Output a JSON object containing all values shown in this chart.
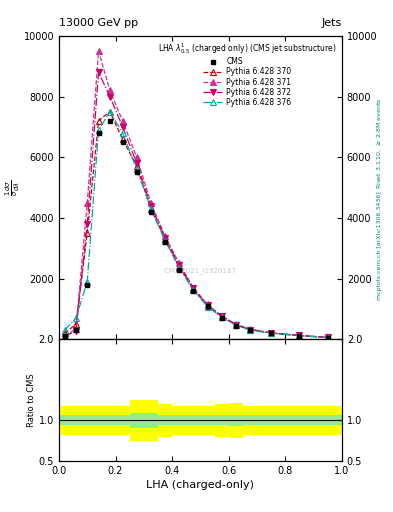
{
  "title_top": "13000 GeV pp",
  "title_right": "Jets",
  "legend_title": "LHA $\\lambda^{1}_{0.5}$ (charged only) (CMS jet substructure)",
  "ylabel_main": "$\\frac{1}{\\sigma}\\frac{d\\sigma}{d\\lambda}$",
  "ylabel_ratio": "Ratio to CMS",
  "xlabel": "LHA (charged-only)",
  "right_label_1": "Rivet 3.1.10, $\\geq$ 2.8M events",
  "right_label_2": "mcplots.cern.ch [arXiv:1306.3436]",
  "xlim": [
    0,
    1
  ],
  "ylim_main": [
    0,
    10000
  ],
  "ylim_ratio": [
    0.5,
    2
  ],
  "yticks_main": [
    2000,
    4000,
    6000,
    8000,
    10000
  ],
  "yticks_ratio": [
    0.5,
    1,
    2
  ],
  "x_bins": [
    0.0,
    0.04,
    0.08,
    0.12,
    0.16,
    0.2,
    0.25,
    0.3,
    0.35,
    0.4,
    0.45,
    0.5,
    0.55,
    0.6,
    0.65,
    0.7,
    0.8,
    0.9,
    1.0
  ],
  "cms_data": [
    100,
    300,
    1800,
    6800,
    7200,
    6500,
    5500,
    4200,
    3200,
    2300,
    1600,
    1100,
    700,
    450,
    300,
    200,
    120,
    60
  ],
  "p370_data": [
    200,
    500,
    3500,
    7200,
    7500,
    6600,
    5700,
    4300,
    3300,
    2400,
    1650,
    1100,
    750,
    480,
    320,
    210,
    125,
    65
  ],
  "p371_data": [
    100,
    350,
    4500,
    9500,
    8200,
    7200,
    6000,
    4500,
    3400,
    2500,
    1700,
    1150,
    780,
    500,
    330,
    220,
    130,
    68
  ],
  "p372_data": [
    100,
    280,
    3800,
    8800,
    8000,
    7000,
    5800,
    4400,
    3350,
    2450,
    1680,
    1120,
    760,
    490,
    325,
    215,
    128,
    66
  ],
  "p376_data": [
    300,
    700,
    1900,
    6900,
    7500,
    6800,
    5600,
    4300,
    3250,
    2350,
    1620,
    1080,
    730,
    460,
    305,
    200,
    118,
    62
  ],
  "cms_color": "#000000",
  "p370_color": "#cc0000",
  "p371_color": "#cc3399",
  "p372_color": "#cc0066",
  "p376_color": "#00aaaa",
  "ratio_x_bins": [
    0.0,
    0.04,
    0.08,
    0.12,
    0.16,
    0.2,
    0.25,
    0.3,
    0.35,
    0.4,
    0.45,
    0.5,
    0.55,
    0.6,
    0.65,
    0.7,
    0.8,
    0.9,
    1.0
  ],
  "ratio_yellow_lo": [
    0.82,
    0.82,
    0.82,
    0.82,
    0.82,
    0.82,
    0.75,
    0.75,
    0.8,
    0.82,
    0.82,
    0.82,
    0.8,
    0.78,
    0.82,
    0.82,
    0.82,
    0.82
  ],
  "ratio_yellow_hi": [
    1.18,
    1.18,
    1.18,
    1.18,
    1.18,
    1.18,
    1.25,
    1.25,
    1.2,
    1.18,
    1.18,
    1.18,
    1.2,
    1.22,
    1.18,
    1.18,
    1.18,
    1.18
  ],
  "ratio_green_lo": [
    0.94,
    0.94,
    0.94,
    0.94,
    0.94,
    0.94,
    0.91,
    0.91,
    0.94,
    0.94,
    0.94,
    0.94,
    0.94,
    0.93,
    0.94,
    0.94,
    0.94,
    0.94
  ],
  "ratio_green_hi": [
    1.06,
    1.06,
    1.06,
    1.06,
    1.06,
    1.06,
    1.09,
    1.09,
    1.06,
    1.06,
    1.06,
    1.06,
    1.06,
    1.07,
    1.06,
    1.06,
    1.06,
    1.06
  ]
}
